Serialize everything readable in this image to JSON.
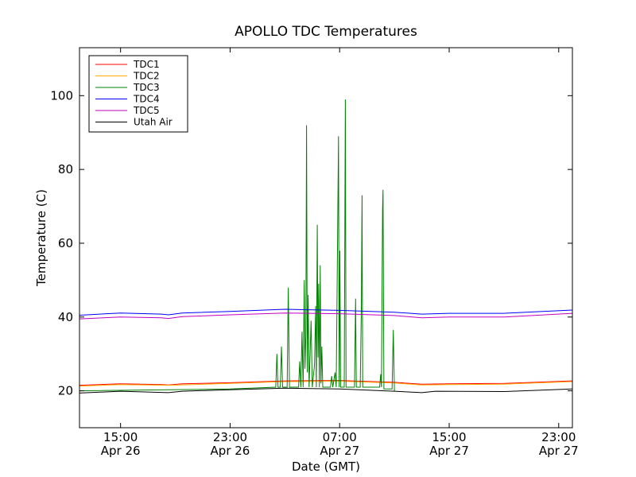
{
  "chart_data": {
    "type": "line",
    "title": "APOLLO TDC Temperatures",
    "xlabel": "Date (GMT)",
    "ylabel": "Temperature (C)",
    "ylim": [
      10,
      113
    ],
    "xlim": [
      "2014-04-26T12:00",
      "2014-04-28T00:00"
    ],
    "yticks": [
      20,
      40,
      60,
      80,
      100
    ],
    "xticks": [
      {
        "t": "2014-04-26T15:00",
        "time": "15:00",
        "date": "Apr 26"
      },
      {
        "t": "2014-04-26T23:00",
        "time": "23:00",
        "date": "Apr 26"
      },
      {
        "t": "2014-04-27T07:00",
        "time": "07:00",
        "date": "Apr 27"
      },
      {
        "t": "2014-04-27T15:00",
        "time": "15:00",
        "date": "Apr 27"
      },
      {
        "t": "2014-04-27T23:00",
        "time": "23:00",
        "date": "Apr 27"
      }
    ],
    "grid": false,
    "legend_position": "top-left",
    "series": [
      {
        "name": "TDC1",
        "color": "#ff0000",
        "points": [
          [
            "2014-04-26T12:00",
            21.5
          ],
          [
            "2014-04-26T15:00",
            21.9
          ],
          [
            "2014-04-26T18:00",
            21.7
          ],
          [
            "2014-04-26T18:30",
            21.6
          ],
          [
            "2014-04-26T19:30",
            21.9
          ],
          [
            "2014-04-26T23:00",
            22.2
          ],
          [
            "2014-04-27T03:00",
            22.7
          ],
          [
            "2014-04-27T07:00",
            22.8
          ],
          [
            "2014-04-27T11:00",
            22.3
          ],
          [
            "2014-04-27T13:00",
            21.8
          ],
          [
            "2014-04-27T15:00",
            21.9
          ],
          [
            "2014-04-27T19:00",
            22.0
          ],
          [
            "2014-04-28T00:00",
            22.7
          ]
        ]
      },
      {
        "name": "TDC2",
        "color": "#ffaa00",
        "points": [
          [
            "2014-04-26T12:00",
            21.3
          ],
          [
            "2014-04-26T15:00",
            21.7
          ],
          [
            "2014-04-26T18:30",
            21.5
          ],
          [
            "2014-04-26T23:00",
            22.0
          ],
          [
            "2014-04-27T03:00",
            22.5
          ],
          [
            "2014-04-27T07:00",
            22.6
          ],
          [
            "2014-04-27T11:00",
            22.1
          ],
          [
            "2014-04-27T13:00",
            21.6
          ],
          [
            "2014-04-27T15:00",
            21.7
          ],
          [
            "2014-04-27T19:00",
            21.8
          ],
          [
            "2014-04-28T00:00",
            22.5
          ]
        ]
      },
      {
        "name": "TDC3",
        "color": "#008000",
        "points": [
          [
            "2014-04-26T12:00",
            20.0
          ],
          [
            "2014-04-26T23:00",
            20.5
          ],
          [
            "2014-04-27T02:20",
            21.0
          ],
          [
            "2014-04-27T02:25",
            30.0
          ],
          [
            "2014-04-27T02:30",
            21.0
          ],
          [
            "2014-04-27T02:40",
            21.0
          ],
          [
            "2014-04-27T02:45",
            32.0
          ],
          [
            "2014-04-27T02:50",
            21.0
          ],
          [
            "2014-04-27T03:10",
            21.0
          ],
          [
            "2014-04-27T03:15",
            48.0
          ],
          [
            "2014-04-27T03:20",
            21.0
          ],
          [
            "2014-04-27T04:00",
            21.0
          ],
          [
            "2014-04-27T04:05",
            28.0
          ],
          [
            "2014-04-27T04:10",
            21.0
          ],
          [
            "2014-04-27T04:15",
            36.0
          ],
          [
            "2014-04-27T04:20",
            21.0
          ],
          [
            "2014-04-27T04:25",
            50.0
          ],
          [
            "2014-04-27T04:28",
            26.0
          ],
          [
            "2014-04-27T04:32",
            35.0
          ],
          [
            "2014-04-27T04:35",
            92.0
          ],
          [
            "2014-04-27T04:38",
            25.0
          ],
          [
            "2014-04-27T04:42",
            46.0
          ],
          [
            "2014-04-27T04:46",
            21.0
          ],
          [
            "2014-04-27T04:55",
            39.0
          ],
          [
            "2014-04-27T05:00",
            21.0
          ],
          [
            "2014-04-27T05:10",
            27.0
          ],
          [
            "2014-04-27T05:15",
            43.0
          ],
          [
            "2014-04-27T05:18",
            21.0
          ],
          [
            "2014-04-27T05:22",
            65.0
          ],
          [
            "2014-04-27T05:25",
            29.0
          ],
          [
            "2014-04-27T05:28",
            49.0
          ],
          [
            "2014-04-27T05:31",
            21.0
          ],
          [
            "2014-04-27T05:35",
            54.0
          ],
          [
            "2014-04-27T05:38",
            22.0
          ],
          [
            "2014-04-27T05:42",
            32.0
          ],
          [
            "2014-04-27T05:46",
            21.0
          ],
          [
            "2014-04-27T06:20",
            21.0
          ],
          [
            "2014-04-27T06:25",
            24.0
          ],
          [
            "2014-04-27T06:30",
            21.0
          ],
          [
            "2014-04-27T06:40",
            25.0
          ],
          [
            "2014-04-27T06:45",
            21.0
          ],
          [
            "2014-04-27T06:55",
            89.0
          ],
          [
            "2014-04-27T06:58",
            21.0
          ],
          [
            "2014-04-27T07:01",
            58.0
          ],
          [
            "2014-04-27T07:04",
            21.0
          ],
          [
            "2014-04-27T07:20",
            21.0
          ],
          [
            "2014-04-27T07:25",
            99.0
          ],
          [
            "2014-04-27T07:28",
            21.0
          ],
          [
            "2014-04-27T08:05",
            21.0
          ],
          [
            "2014-04-27T08:10",
            45.0
          ],
          [
            "2014-04-27T08:13",
            21.0
          ],
          [
            "2014-04-27T08:30",
            21.0
          ],
          [
            "2014-04-27T08:35",
            42.0
          ],
          [
            "2014-04-27T08:38",
            73.0
          ],
          [
            "2014-04-27T08:41",
            21.0
          ],
          [
            "2014-04-27T09:55",
            21.0
          ],
          [
            "2014-04-27T10:00",
            24.5
          ],
          [
            "2014-04-27T10:03",
            21.0
          ],
          [
            "2014-04-27T10:08",
            69.0
          ],
          [
            "2014-04-27T10:10",
            74.5
          ],
          [
            "2014-04-27T10:14",
            20.5
          ],
          [
            "2014-04-27T10:50",
            20.5
          ],
          [
            "2014-04-27T10:55",
            36.5
          ],
          [
            "2014-04-27T11:00",
            20.0
          ]
        ]
      },
      {
        "name": "TDC4",
        "color": "#0000ff",
        "points": [
          [
            "2014-04-26T12:00",
            40.5
          ],
          [
            "2014-04-26T15:00",
            41.1
          ],
          [
            "2014-04-26T18:00",
            40.8
          ],
          [
            "2014-04-26T18:30",
            40.6
          ],
          [
            "2014-04-26T19:30",
            41.1
          ],
          [
            "2014-04-26T23:00",
            41.5
          ],
          [
            "2014-04-27T03:00",
            42.1
          ],
          [
            "2014-04-27T07:00",
            41.8
          ],
          [
            "2014-04-27T11:00",
            41.3
          ],
          [
            "2014-04-27T13:00",
            40.8
          ],
          [
            "2014-04-27T15:00",
            41.0
          ],
          [
            "2014-04-27T19:00",
            41.0
          ],
          [
            "2014-04-28T00:00",
            41.9
          ]
        ]
      },
      {
        "name": "TDC5",
        "color": "#bf00bf",
        "points": [
          [
            "2014-04-26T12:00",
            39.5
          ],
          [
            "2014-04-26T15:00",
            40.0
          ],
          [
            "2014-04-26T18:00",
            39.8
          ],
          [
            "2014-04-26T18:30",
            39.6
          ],
          [
            "2014-04-26T19:30",
            40.1
          ],
          [
            "2014-04-26T23:00",
            40.6
          ],
          [
            "2014-04-27T03:00",
            41.1
          ],
          [
            "2014-04-27T07:00",
            40.9
          ],
          [
            "2014-04-27T11:00",
            40.4
          ],
          [
            "2014-04-27T13:00",
            39.8
          ],
          [
            "2014-04-27T15:00",
            40.0
          ],
          [
            "2014-04-27T19:00",
            40.0
          ],
          [
            "2014-04-28T00:00",
            41.0
          ]
        ]
      },
      {
        "name": "Utah Air",
        "color": "#000000",
        "points": [
          [
            "2014-04-26T12:00",
            19.4
          ],
          [
            "2014-04-26T15:00",
            19.9
          ],
          [
            "2014-04-26T18:30",
            19.5
          ],
          [
            "2014-04-26T19:30",
            19.9
          ],
          [
            "2014-04-26T23:00",
            20.3
          ],
          [
            "2014-04-27T03:00",
            20.7
          ],
          [
            "2014-04-27T07:00",
            20.5
          ],
          [
            "2014-04-27T11:00",
            19.9
          ],
          [
            "2014-04-27T13:00",
            19.5
          ],
          [
            "2014-04-27T14:00",
            19.9
          ],
          [
            "2014-04-27T19:00",
            19.8
          ],
          [
            "2014-04-28T00:00",
            20.5
          ]
        ]
      }
    ]
  }
}
